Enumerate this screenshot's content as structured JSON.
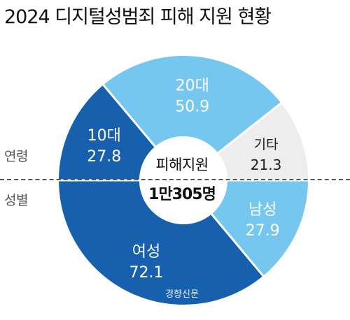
{
  "title": "2024 디지털성범죄 피해 지원 현황",
  "center": {
    "caption": "피해지원",
    "total": "1만305명"
  },
  "source": "경향신문",
  "chart_data": [
    {
      "type": "pie",
      "group_label": "연령",
      "slices": [
        {
          "label": "10대",
          "value": 27.8,
          "color": "#1660ad",
          "text_color": "#ffffff"
        },
        {
          "label": "20대",
          "value": 50.9,
          "color": "#76c7ef",
          "text_color": "#ffffff"
        },
        {
          "label": "기타",
          "value": 21.3,
          "color": "#ededed",
          "text_color": "#222222"
        }
      ]
    },
    {
      "type": "pie",
      "group_label": "성별",
      "slices": [
        {
          "label": "여성",
          "value": 72.1,
          "color": "#1660ad",
          "text_color": "#ffffff"
        },
        {
          "label": "남성",
          "value": 27.9,
          "color": "#76c7ef",
          "text_color": "#ffffff"
        }
      ]
    }
  ]
}
